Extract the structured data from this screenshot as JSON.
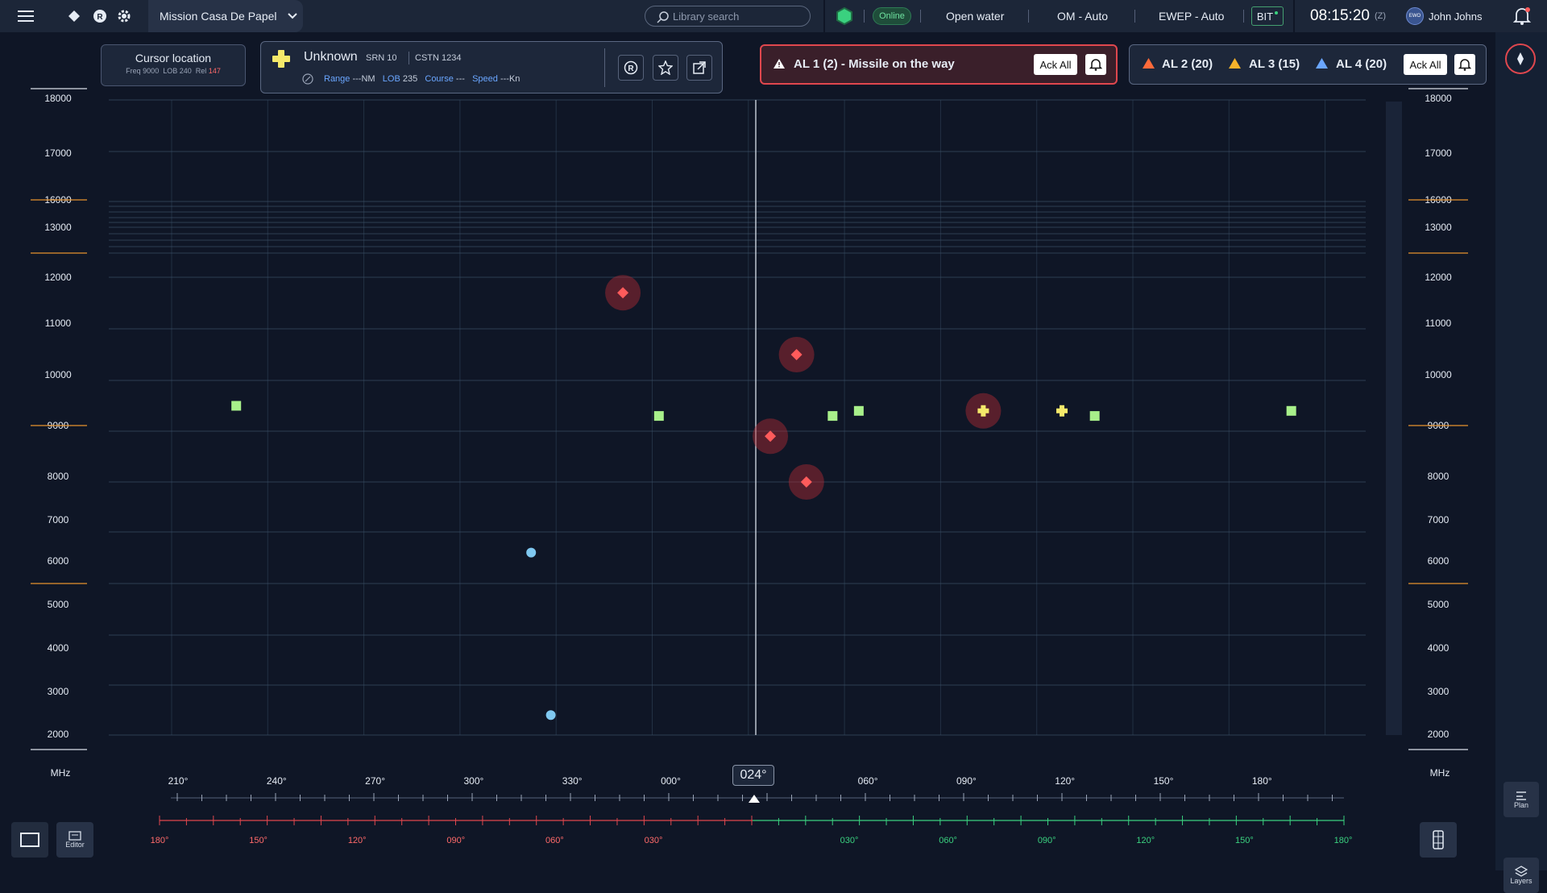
{
  "topbar": {
    "mission": "Mission Casa De Papel",
    "search_placeholder": "Library search",
    "status": "Online",
    "mode1": "Open water",
    "mode2": "OM - Auto",
    "mode3": "EWEP - Auto",
    "bit": "BIT",
    "time": "08:15:20",
    "time_zone": "(Z)",
    "user_initials": "EWO",
    "user_name": "John Johns"
  },
  "cursor": {
    "title": "Cursor location",
    "freq_label": "Freq",
    "freq": "9000",
    "lob_label": "LOB",
    "lob": "240",
    "rel_label": "Rel",
    "rel": "147"
  },
  "target": {
    "name": "Unknown",
    "srn": "SRN 10",
    "cstn": "CSTN 1234",
    "range_label": "Range",
    "range": "---NM",
    "lob_label": "LOB",
    "lob": "235",
    "course_label": "Course",
    "course": "---",
    "speed_label": "Speed",
    "speed": "---Kn"
  },
  "alerts": {
    "al1": "AL 1 (2) - Missile on the way",
    "al2": "AL 2 (20)",
    "al3": "AL 3 (15)",
    "al4": "AL 4 (20)",
    "ack_all": "Ack All"
  },
  "colors": {
    "hostile": "#ff5b5b",
    "friendly": "#a8f08a",
    "neutral": "#7fc8f0",
    "unknown": "#f5e96a",
    "grid": "#3a5066"
  },
  "chart_data": {
    "type": "scatter",
    "y_unit": "MHz",
    "y_ticks": [
      18000,
      17000,
      16000,
      13000,
      12000,
      11000,
      10000,
      9000,
      8000,
      7000,
      6000,
      5000,
      4000,
      3000,
      2000
    ],
    "x_ticks": [
      "210°",
      "240°",
      "270°",
      "300°",
      "330°",
      "000°",
      "",
      "060°",
      "090°",
      "120°",
      "150°",
      "180°"
    ],
    "bearing_readout": "024°",
    "rel_ticks_left": [
      "180°",
      "150°",
      "120°",
      "090°",
      "060°",
      "030°"
    ],
    "rel_ticks_right": [
      "030°",
      "060°",
      "090°",
      "120°",
      "150°",
      "180°"
    ],
    "points": [
      {
        "x": 228,
        "y": 9500,
        "type": "friendly"
      },
      {
        "x": 346,
        "y": 11700,
        "type": "hostile"
      },
      {
        "x": 357,
        "y": 9300,
        "type": "friendly"
      },
      {
        "x": 318,
        "y": 6600,
        "type": "neutral"
      },
      {
        "x": 324,
        "y": 3400,
        "type": "neutral"
      },
      {
        "x": 31,
        "y": 8900,
        "type": "hostile"
      },
      {
        "x": 39,
        "y": 10500,
        "type": "hostile"
      },
      {
        "x": 42,
        "y": 8000,
        "type": "hostile"
      },
      {
        "x": 50,
        "y": 9300,
        "type": "friendly"
      },
      {
        "x": 58,
        "y": 9400,
        "type": "friendly"
      },
      {
        "x": 96,
        "y": 9400,
        "type": "unknown-hostile"
      },
      {
        "x": 120,
        "y": 9400,
        "type": "unknown"
      },
      {
        "x": 130,
        "y": 9300,
        "type": "friendly"
      },
      {
        "x": 190,
        "y": 9400,
        "type": "friendly"
      }
    ]
  },
  "bottom": {
    "editor": "Editor",
    "plan": "Plan",
    "layers": "Layers"
  }
}
